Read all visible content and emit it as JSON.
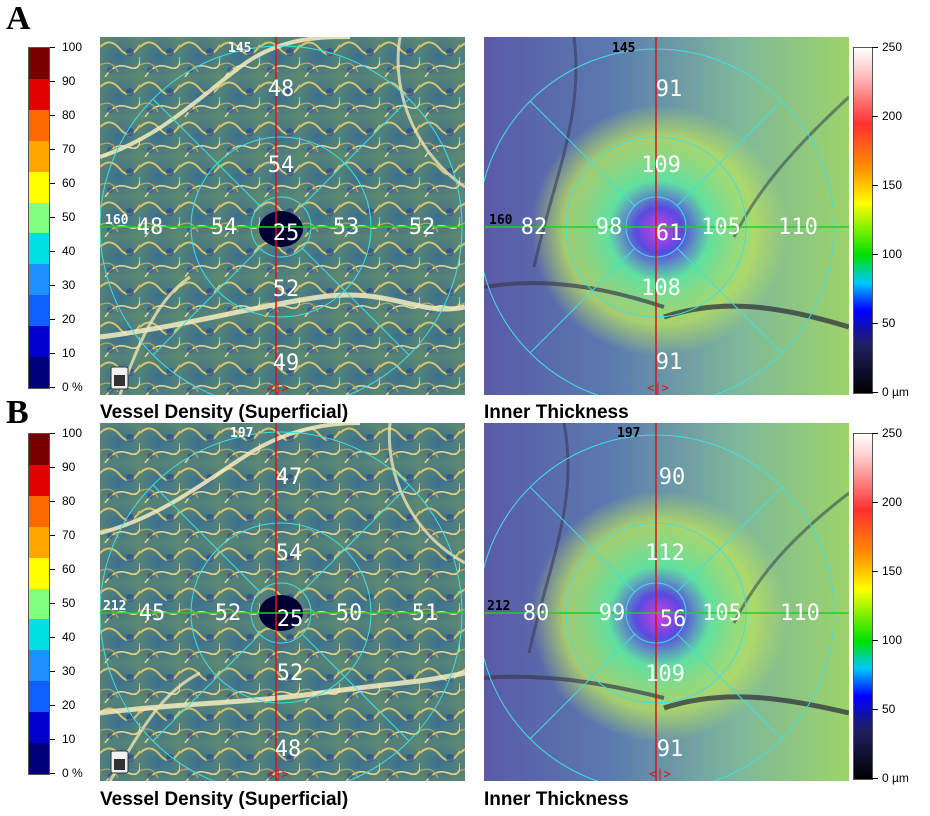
{
  "panels": [
    {
      "letter": "A",
      "density": {
        "caption": "Vessel Density (Superficial)",
        "top_label": "145",
        "left_label": "160",
        "values": {
          "center": "25",
          "inner_top": "54",
          "inner_left": "54",
          "inner_right": "53",
          "inner_bottom": "52",
          "outer_top": "48",
          "outer_left": "48",
          "outer_right": "52",
          "outer_bottom": "49"
        }
      },
      "thickness": {
        "caption": "Inner Thickness",
        "top_label": "145",
        "left_label": "160",
        "values": {
          "center": "61",
          "inner_top": "109",
          "inner_left": "98",
          "inner_right": "105",
          "inner_bottom": "108",
          "outer_top": "91",
          "outer_left": "82",
          "outer_right": "110",
          "outer_bottom": "91"
        }
      }
    },
    {
      "letter": "B",
      "density": {
        "caption": "Vessel Density (Superficial)",
        "top_label": "197",
        "left_label": "212",
        "values": {
          "center": "25",
          "inner_top": "54",
          "inner_left": "52",
          "inner_right": "50",
          "inner_bottom": "52",
          "outer_top": "47",
          "outer_left": "45",
          "outer_right": "51",
          "outer_bottom": "48"
        }
      },
      "thickness": {
        "caption": "Inner Thickness",
        "top_label": "197",
        "left_label": "212",
        "values": {
          "center": "56",
          "inner_top": "112",
          "inner_left": "99",
          "inner_right": "105",
          "inner_bottom": "109",
          "outer_top": "90",
          "outer_left": "80",
          "outer_right": "110",
          "outer_bottom": "91"
        }
      }
    }
  ],
  "density_scale": {
    "ticks": [
      "100",
      "90",
      "80",
      "70",
      "60",
      "50",
      "40",
      "30",
      "20",
      "10",
      "0 %"
    ],
    "colors": [
      "#7a0000",
      "#e00000",
      "#ff6a00",
      "#ffa500",
      "#ffff00",
      "#80ff80",
      "#00e0e0",
      "#1e90ff",
      "#1060ff",
      "#0000cc",
      "#00007a"
    ]
  },
  "thickness_scale": {
    "ticks": [
      "250",
      "200",
      "150",
      "100",
      "50",
      "0 µm"
    ]
  },
  "marker": "<|>",
  "colors": {
    "grid_circle": "#40e0e0",
    "vertical_axis": "#e01010",
    "horizontal_axis": "#20d020"
  }
}
